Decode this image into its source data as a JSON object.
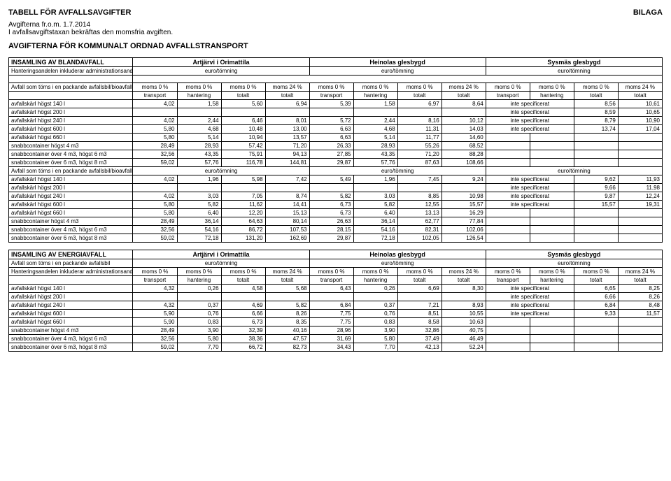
{
  "header": {
    "table_title": "TABELL FÖR AVFALLSAVGIFTER",
    "bilaga": "BILAGA",
    "subtitle": "Avgifterna fr.o.m. 1.7.2014",
    "note": "I avfallsavgiftstaxan bekräftas den momsfria avgiften.",
    "transport_title": "AVGIFTERNA FÖR KOMMUNALT ORDNAD AVFALLSTRANSPORT"
  },
  "labels": {
    "region_artjarvi": "Artjärvi i Orimattila",
    "region_heinola": "Heinolas glesbygd",
    "region_sysma": "Sysmäs glesbygd",
    "euro_tomning": "euro/tömning",
    "moms0": "moms 0 %",
    "moms24": "moms 24 %",
    "transport": "transport",
    "hantering": "hantering",
    "totalt": "totalt",
    "inte_spec": "inte specificerat"
  },
  "section1": {
    "title": "INSAMLING AV BLANDAVFALL",
    "hantering_note": "Hanteringsandelen inkluderar administrationsandelen 0,1 euro/tömning i Orimattila och Heinola",
    "group1_title": "Avfall som töms i en packande avfallsbil/bioavfall separerat",
    "group2_title": "Avfall som töms i en packande avfallsbil/bioavfall inte separerat",
    "rows1": [
      {
        "label": "avfallskärl högst 140 l",
        "a": [
          "4,02",
          "1,58",
          "5,60",
          "6,94"
        ],
        "b": [
          "5,39",
          "1,58",
          "6,97",
          "8,64"
        ],
        "c": [
          "inte specificerat",
          "8,56",
          "10,61"
        ]
      },
      {
        "label": "avfallskärl högst 200 l",
        "a": [
          "",
          "",
          "",
          ""
        ],
        "b": [
          "",
          "",
          "",
          ""
        ],
        "c": [
          "inte specificerat",
          "8,59",
          "10,65"
        ]
      },
      {
        "label": "avfallskärl högst 240 l",
        "a": [
          "4,02",
          "2,44",
          "6,46",
          "8,01"
        ],
        "b": [
          "5,72",
          "2,44",
          "8,16",
          "10,12"
        ],
        "c": [
          "inte specificerat",
          "8,79",
          "10,90"
        ]
      },
      {
        "label": "avfallskärl högst 600 l",
        "a": [
          "5,80",
          "4,68",
          "10,48",
          "13,00"
        ],
        "b": [
          "6,63",
          "4,68",
          "11,31",
          "14,03"
        ],
        "c": [
          "inte specificerat",
          "13,74",
          "17,04"
        ]
      },
      {
        "label": "avfallskärl högst 660 l",
        "a": [
          "5,80",
          "5,14",
          "10,94",
          "13,57"
        ],
        "b": [
          "6,63",
          "5,14",
          "11,77",
          "14,60"
        ],
        "c": [
          "",
          "",
          ""
        ]
      },
      {
        "label": "snabbcontainer högst 4 m3",
        "a": [
          "28,49",
          "28,93",
          "57,42",
          "71,20"
        ],
        "b": [
          "26,33",
          "28,93",
          "55,26",
          "68,52"
        ],
        "c": [
          "",
          "",
          ""
        ]
      },
      {
        "label": "snabbcontainer över 4 m3,  högst 6 m3",
        "a": [
          "32,56",
          "43,35",
          "75,91",
          "94,13"
        ],
        "b": [
          "27,85",
          "43,35",
          "71,20",
          "88,28"
        ],
        "c": [
          "",
          "",
          ""
        ]
      },
      {
        "label": "snabbcontainer över 6 m3,  högst 8 m3",
        "a": [
          "59,02",
          "57,76",
          "116,78",
          "144,81"
        ],
        "b": [
          "29,87",
          "57,76",
          "87,63",
          "108,66"
        ],
        "c": [
          "",
          "",
          ""
        ]
      }
    ],
    "rows2": [
      {
        "label": "avfallskärl högst 140 l",
        "a": [
          "4,02",
          "1,96",
          "5,98",
          "7,42"
        ],
        "b": [
          "5,49",
          "1,96",
          "7,45",
          "9,24"
        ],
        "c": [
          "inte specificerat",
          "9,62",
          "11,93"
        ]
      },
      {
        "label": "avfallskärl högst 200 l",
        "a": [
          "",
          "",
          "",
          ""
        ],
        "b": [
          "",
          "",
          "",
          ""
        ],
        "c": [
          "inte specificerat",
          "9,66",
          "11,98"
        ]
      },
      {
        "label": "avfallskärl högst 240 l",
        "a": [
          "4,02",
          "3,03",
          "7,05",
          "8,74"
        ],
        "b": [
          "5,82",
          "3,03",
          "8,85",
          "10,98"
        ],
        "c": [
          "inte specificerat",
          "9,87",
          "12,24"
        ]
      },
      {
        "label": "avfallskärl högst 600 l",
        "a": [
          "5,80",
          "5,82",
          "11,62",
          "14,41"
        ],
        "b": [
          "6,73",
          "5,82",
          "12,55",
          "15,57"
        ],
        "c": [
          "inte specificerat",
          "15,57",
          "19,31"
        ]
      },
      {
        "label": "avfallskärl högst 660 l",
        "a": [
          "5,80",
          "6,40",
          "12,20",
          "15,13"
        ],
        "b": [
          "6,73",
          "6,40",
          "13,13",
          "16,29"
        ],
        "c": [
          "",
          "",
          ""
        ]
      },
      {
        "label": "snabbcontainer högst 4 m3",
        "a": [
          "28,49",
          "36,14",
          "64,63",
          "80,14"
        ],
        "b": [
          "26,63",
          "36,14",
          "62,77",
          "77,84"
        ],
        "c": [
          "",
          "",
          ""
        ]
      },
      {
        "label": "snabbcontainer över 4 m3,  högst 6 m3",
        "a": [
          "32,56",
          "54,16",
          "86,72",
          "107,53"
        ],
        "b": [
          "28,15",
          "54,16",
          "82,31",
          "102,06"
        ],
        "c": [
          "",
          "",
          ""
        ]
      },
      {
        "label": "snabbcontainer över 6 m3,  högst 8 m3",
        "a": [
          "59,02",
          "72,18",
          "131,20",
          "162,69"
        ],
        "b": [
          "29,87",
          "72,18",
          "102,05",
          "126,54"
        ],
        "c": [
          "",
          "",
          ""
        ]
      }
    ]
  },
  "section2": {
    "title": "INSAMLING AV ENERGIAVFALL",
    "group_title": "Avfall som töms i en packande avfallsbil",
    "hantering_note": "Hanteringsandelen inkluderar administrationsandelen 0,1 euro/tömning i Orimattila och Heinola",
    "rows": [
      {
        "label": "avfallskärl högst 140 l",
        "a": [
          "4,32",
          "0,26",
          "4,58",
          "5,68"
        ],
        "b": [
          "6,43",
          "0,26",
          "6,69",
          "8,30"
        ],
        "c": [
          "inte specificerat",
          "6,65",
          "8,25"
        ]
      },
      {
        "label": "avfallskärl högst 200 l",
        "a": [
          "",
          "",
          "",
          ""
        ],
        "b": [
          "",
          "",
          "",
          ""
        ],
        "c": [
          "inte specificerat",
          "6,66",
          "8,26"
        ]
      },
      {
        "label": "avfallskärl högst 240 l",
        "a": [
          "4,32",
          "0,37",
          "4,69",
          "5,82"
        ],
        "b": [
          "6,84",
          "0,37",
          "7,21",
          "8,93"
        ],
        "c": [
          "inte specificerat",
          "6,84",
          "8,48"
        ]
      },
      {
        "label": "avfallskärl högst 600 l",
        "a": [
          "5,90",
          "0,76",
          "6,66",
          "8,26"
        ],
        "b": [
          "7,75",
          "0,76",
          "8,51",
          "10,55"
        ],
        "c": [
          "inte specificerat",
          "9,33",
          "11,57"
        ]
      },
      {
        "label": "avfallskärl högst 660 l",
        "a": [
          "5,90",
          "0,83",
          "6,73",
          "8,35"
        ],
        "b": [
          "7,75",
          "0,83",
          "8,58",
          "10,63"
        ],
        "c": [
          "",
          "",
          ""
        ]
      },
      {
        "label": "snabbcontainer högst 4 m3",
        "a": [
          "28,49",
          "3,90",
          "32,39",
          "40,16"
        ],
        "b": [
          "28,96",
          "3,90",
          "32,86",
          "40,75"
        ],
        "c": [
          "",
          "",
          ""
        ]
      },
      {
        "label": "snabbcontainer över 4 m3,  högst 6 m3",
        "a": [
          "32,56",
          "5,80",
          "38,36",
          "47,57"
        ],
        "b": [
          "31,69",
          "5,80",
          "37,49",
          "46,49"
        ],
        "c": [
          "",
          "",
          ""
        ]
      },
      {
        "label": "snabbcontainer över 6 m3,  högst 8 m3",
        "a": [
          "59,02",
          "7,70",
          "66,72",
          "82,73"
        ],
        "b": [
          "34,43",
          "7,70",
          "42,13",
          "52,24"
        ],
        "c": [
          "",
          "",
          ""
        ]
      }
    ]
  },
  "colors": {
    "border": "#000000",
    "text": "#000000",
    "background": "#ffffff"
  }
}
